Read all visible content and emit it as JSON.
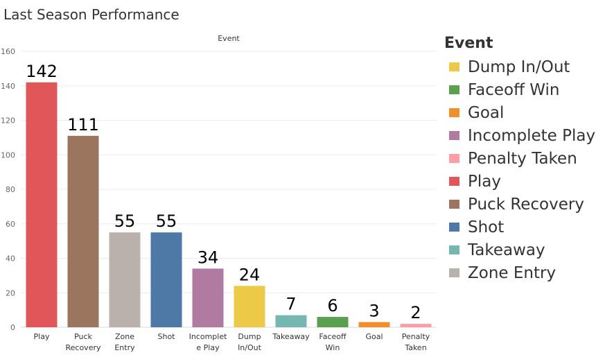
{
  "page_title": "Last Season Performance",
  "chart_data": {
    "type": "bar",
    "column_header": "Event",
    "categories": [
      "Play",
      "Puck Recovery",
      "Zone Entry",
      "Shot",
      "Incomplete Play",
      "Dump In/Out",
      "Takeaway",
      "Faceoff Win",
      "Goal",
      "Penalty Taken"
    ],
    "category_tick_lines": [
      [
        "Play"
      ],
      [
        "Puck",
        "Recovery"
      ],
      [
        "Zone",
        "Entry"
      ],
      [
        "Shot"
      ],
      [
        "Incomplet",
        "e Play"
      ],
      [
        "Dump",
        "In/Out"
      ],
      [
        "Takeaway"
      ],
      [
        "Faceoff",
        "Win"
      ],
      [
        "Goal"
      ],
      [
        "Penalty",
        "Taken"
      ]
    ],
    "values": [
      142,
      111,
      55,
      55,
      34,
      24,
      7,
      6,
      3,
      2
    ],
    "colors": [
      "#e15759",
      "#9c755f",
      "#bab0ac",
      "#4e79a7",
      "#b07aa1",
      "#edc948",
      "#76b7b2",
      "#59a14f",
      "#f28e2b",
      "#ff9da7"
    ],
    "ylim": [
      0,
      160
    ],
    "y_ticks": [
      0,
      20,
      40,
      60,
      80,
      100,
      120,
      140,
      160
    ],
    "grid": true,
    "legend_position": "right"
  },
  "legend": {
    "title": "Event",
    "items": [
      {
        "label": "Dump In/Out",
        "color": "#edc948"
      },
      {
        "label": "Faceoff Win",
        "color": "#59a14f"
      },
      {
        "label": "Goal",
        "color": "#f28e2b"
      },
      {
        "label": "Incomplete Play",
        "color": "#b07aa1"
      },
      {
        "label": "Penalty Taken",
        "color": "#ff9da7"
      },
      {
        "label": "Play",
        "color": "#e15759"
      },
      {
        "label": "Puck Recovery",
        "color": "#9c755f"
      },
      {
        "label": "Shot",
        "color": "#4e79a7"
      },
      {
        "label": "Takeaway",
        "color": "#76b7b2"
      },
      {
        "label": "Zone Entry",
        "color": "#bab0ac"
      }
    ]
  }
}
